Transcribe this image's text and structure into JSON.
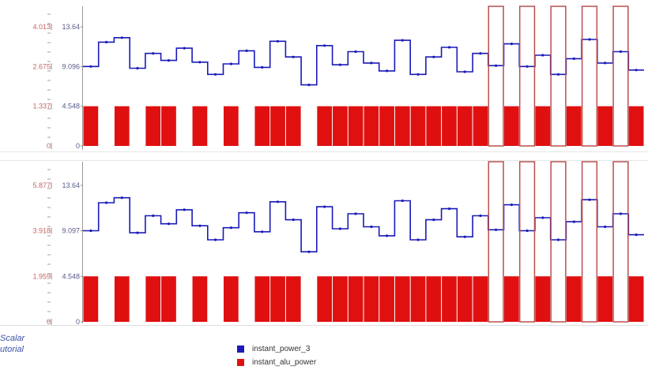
{
  "colors": {
    "series1": "#1a1ab8",
    "series2": "#e01010",
    "series2_line": "#b85050",
    "axis_label_left": "#c86464",
    "axis_label_right": "#5a5a8a"
  },
  "caption": {
    "line1": "Scalar",
    "line2": "utorial"
  },
  "chart_data": [
    {
      "type": "line",
      "panel": "top",
      "ylim": [
        0,
        16
      ],
      "y_ticks": [
        {
          "left": "0",
          "right": "0",
          "value": 0
        },
        {
          "left": "1.337",
          "right": "4.548",
          "value": 4.548
        },
        {
          "left": "2.675",
          "right": "9.096",
          "value": 9.096
        },
        {
          "left": "4.013",
          "right": "13.64",
          "value": 13.64
        }
      ],
      "series": [
        {
          "name": "instant_power_3",
          "values": [
            9.1,
            11.9,
            12.4,
            8.9,
            10.6,
            9.8,
            11.2,
            9.6,
            8.2,
            9.4,
            10.9,
            9.0,
            12.0,
            10.2,
            7.0,
            11.5,
            9.3,
            10.8,
            9.5,
            8.6,
            12.1,
            8.2,
            10.2,
            11.3,
            8.5,
            10.6,
            9.2,
            11.7,
            9.1,
            10.4,
            8.2,
            10.0,
            12.2,
            9.5,
            10.8,
            8.7
          ]
        },
        {
          "name": "instant_alu_power",
          "values": [
            4.55,
            0.0,
            4.55,
            0.0,
            4.55,
            4.55,
            0.0,
            4.55,
            0.0,
            4.55,
            0.0,
            4.55,
            4.55,
            4.55,
            0.0,
            4.55,
            4.55,
            4.55,
            4.55,
            4.55,
            4.55,
            4.55,
            4.55,
            4.55,
            4.55,
            4.55,
            16.0,
            4.55,
            16.0,
            4.55,
            16.0,
            4.55,
            16.0,
            4.55,
            16.0,
            4.55
          ]
        }
      ]
    },
    {
      "type": "line",
      "panel": "bottom",
      "ylim": [
        0,
        16
      ],
      "y_ticks": [
        {
          "left": "0",
          "right": "0",
          "value": 0
        },
        {
          "left": "1.959",
          "right": "4.548",
          "value": 4.548
        },
        {
          "left": "3.918",
          "right": "9.097",
          "value": 9.097
        },
        {
          "left": "5.877",
          "right": "13.64",
          "value": 13.64
        }
      ],
      "series": [
        {
          "name": "instant_power_3",
          "values": [
            9.1,
            11.9,
            12.4,
            8.9,
            10.6,
            9.8,
            11.2,
            9.6,
            8.2,
            9.4,
            10.9,
            9.0,
            12.0,
            10.2,
            7.0,
            11.5,
            9.3,
            10.8,
            9.5,
            8.6,
            12.1,
            8.2,
            10.2,
            11.3,
            8.5,
            10.6,
            9.2,
            11.7,
            9.1,
            10.4,
            8.2,
            10.0,
            12.2,
            9.5,
            10.8,
            8.7
          ]
        },
        {
          "name": "instant_alu_power",
          "values": [
            4.55,
            0.0,
            4.55,
            0.0,
            4.55,
            4.55,
            0.0,
            4.55,
            0.0,
            4.55,
            0.0,
            4.55,
            4.55,
            4.55,
            0.0,
            4.55,
            4.55,
            4.55,
            4.55,
            4.55,
            4.55,
            4.55,
            4.55,
            4.55,
            4.55,
            4.55,
            16.0,
            4.55,
            16.0,
            4.55,
            16.0,
            4.55,
            16.0,
            4.55,
            16.0,
            4.55
          ]
        }
      ]
    }
  ],
  "legend": [
    {
      "label": "instant_power_3",
      "color": "#1a1ab8"
    },
    {
      "label": "instant_alu_power",
      "color": "#e01010"
    }
  ]
}
